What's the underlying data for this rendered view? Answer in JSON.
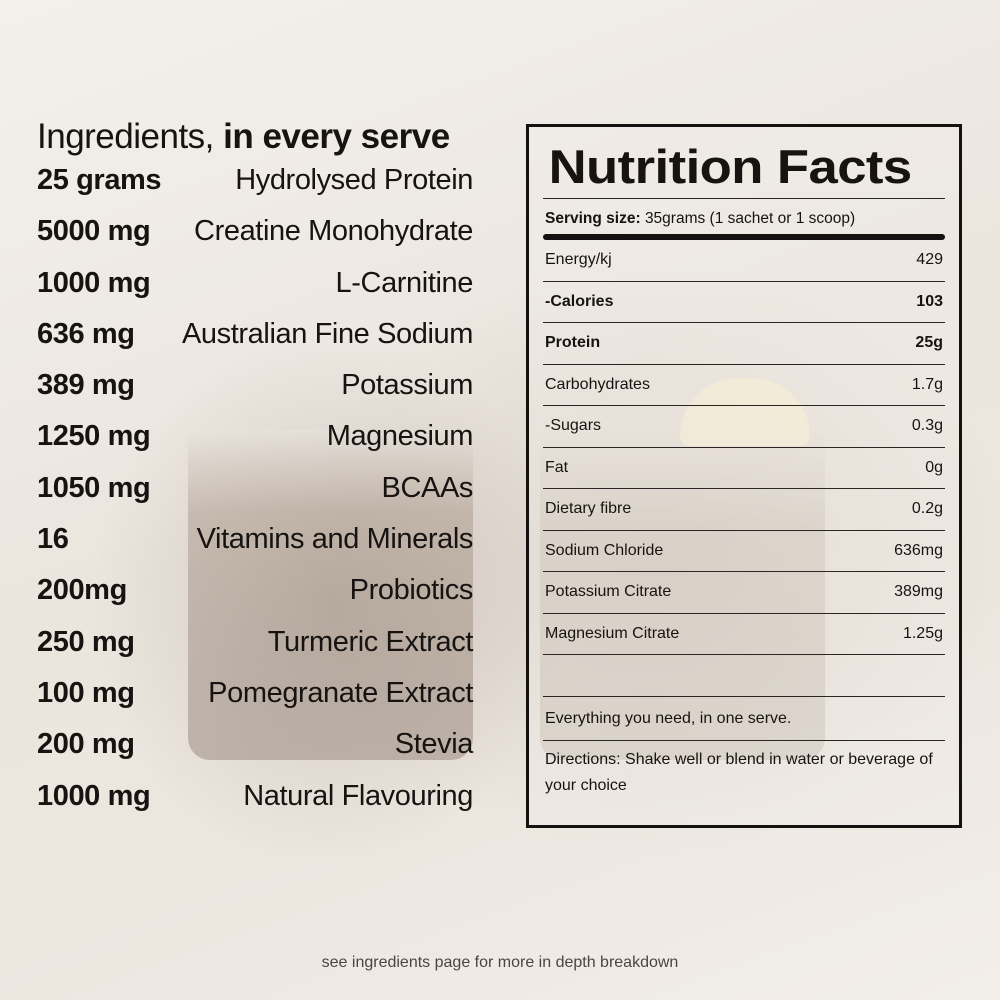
{
  "ingredients": {
    "title_regular": "Ingredients,",
    "title_bold": "in every serve",
    "items": [
      {
        "amount": "25 grams",
        "name": "Hydrolysed Protein"
      },
      {
        "amount": "5000 mg",
        "name": "Creatine Monohydrate"
      },
      {
        "amount": "1000 mg",
        "name": "L-Carnitine"
      },
      {
        "amount": "636 mg",
        "name": "Australian Fine Sodium"
      },
      {
        "amount": "389 mg",
        "name": "Potassium"
      },
      {
        "amount": "1250 mg",
        "name": "Magnesium"
      },
      {
        "amount": "1050 mg",
        "name": "BCAAs"
      },
      {
        "amount": "16",
        "name": "Vitamins and Minerals"
      },
      {
        "amount": "200mg",
        "name": "Probiotics"
      },
      {
        "amount": "250 mg",
        "name": "Turmeric Extract"
      },
      {
        "amount": "100 mg",
        "name": "Pomegranate Extract"
      },
      {
        "amount": "200 mg",
        "name": "Stevia"
      },
      {
        "amount": "1000 mg",
        "name": "Natural Flavouring"
      }
    ]
  },
  "nutrition": {
    "title": "Nutrition Facts",
    "serving_label": "Serving size:",
    "serving_value": "35grams (1 sachet or 1 scoop)",
    "rows": [
      {
        "label": "Energy/kj",
        "value": "429"
      },
      {
        "label": "-Calories",
        "value": "103"
      },
      {
        "label": "Protein",
        "value": "25g"
      },
      {
        "label": "Carbohydrates",
        "value": "1.7g"
      },
      {
        "label": "-Sugars",
        "value": "0.3g"
      },
      {
        "label": "Fat",
        "value": "0g"
      },
      {
        "label": "Dietary fibre",
        "value": "0.2g"
      },
      {
        "label": "Sodium Chloride",
        "value": "636mg"
      },
      {
        "label": "Potassium Citrate",
        "value": "389mg"
      },
      {
        "label": "Magnesium Citrate",
        "value": "1.25g"
      }
    ],
    "note": "Everything you need, in one serve.",
    "directions": "Directions: Shake well or blend in water or beverage of your choice"
  },
  "footer": {
    "text": "see ingredients page for more in depth breakdown"
  }
}
